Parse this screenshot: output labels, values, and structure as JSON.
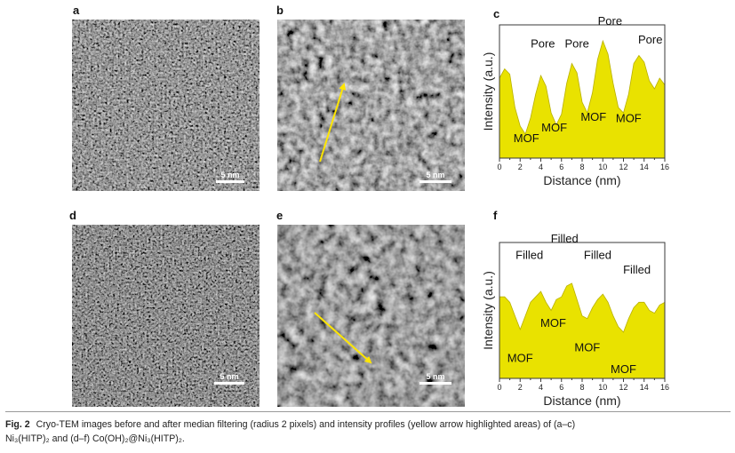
{
  "panels": {
    "a": {
      "label": "a",
      "scale": "5 nm"
    },
    "b": {
      "label": "b",
      "scale": "5 nm"
    },
    "c": {
      "label": "c"
    },
    "d": {
      "label": "d",
      "scale": "5 nm"
    },
    "e": {
      "label": "e",
      "scale": "5 nm"
    },
    "f": {
      "label": "f"
    }
  },
  "colors": {
    "fill": "#e9e200",
    "arrow": "#ffe600",
    "stroke": "#3a3a3a"
  },
  "chart_data": [
    {
      "type": "area",
      "panel": "c",
      "xlabel": "Distance (nm)",
      "ylabel": "Intensity (a.u.)",
      "xlim": [
        0,
        16
      ],
      "xticks": [
        "0",
        "2",
        "4",
        "6",
        "8",
        "10",
        "12",
        "14",
        "16"
      ],
      "x": [
        0,
        0.5,
        1.0,
        1.5,
        2.0,
        2.5,
        3.0,
        3.5,
        4.0,
        4.5,
        5.0,
        5.5,
        6.0,
        6.5,
        7.0,
        7.5,
        8.0,
        8.5,
        9.0,
        9.5,
        10.0,
        10.5,
        11.0,
        11.5,
        12.0,
        12.5,
        13.0,
        13.5,
        14.0,
        14.5,
        15.0,
        15.5,
        16.0
      ],
      "y": [
        0.6,
        0.67,
        0.63,
        0.38,
        0.24,
        0.18,
        0.3,
        0.48,
        0.62,
        0.54,
        0.34,
        0.25,
        0.33,
        0.56,
        0.71,
        0.64,
        0.42,
        0.34,
        0.49,
        0.74,
        0.88,
        0.78,
        0.56,
        0.38,
        0.34,
        0.48,
        0.71,
        0.77,
        0.72,
        0.58,
        0.52,
        0.6,
        0.55
      ],
      "annotations": [
        {
          "text": "Pore",
          "x": 4.2,
          "y": 0.83
        },
        {
          "text": "Pore",
          "x": 7.5,
          "y": 0.83
        },
        {
          "text": "Pore",
          "x": 10.7,
          "y": 1.0
        },
        {
          "text": "Pore",
          "x": 14.6,
          "y": 0.86
        },
        {
          "text": "MOF",
          "x": 2.6,
          "y": 0.12
        },
        {
          "text": "MOF",
          "x": 5.3,
          "y": 0.2
        },
        {
          "text": "MOF",
          "x": 9.1,
          "y": 0.28
        },
        {
          "text": "MOF",
          "x": 12.5,
          "y": 0.27
        }
      ]
    },
    {
      "type": "area",
      "panel": "f",
      "xlabel": "Distance (nm)",
      "ylabel": "Intensity (a.u.)",
      "xlim": [
        0,
        16
      ],
      "xticks": [
        "0",
        "2",
        "4",
        "6",
        "8",
        "10",
        "12",
        "14",
        "16"
      ],
      "x": [
        0,
        0.5,
        1.0,
        1.5,
        2.0,
        2.5,
        3.0,
        3.5,
        4.0,
        4.5,
        5.0,
        5.5,
        6.0,
        6.5,
        7.0,
        7.5,
        8.0,
        8.5,
        9.0,
        9.5,
        10.0,
        10.5,
        11.0,
        11.5,
        12.0,
        12.5,
        13.0,
        13.5,
        14.0,
        14.5,
        15.0,
        15.5,
        16.0
      ],
      "y": [
        0.6,
        0.6,
        0.56,
        0.46,
        0.36,
        0.46,
        0.56,
        0.6,
        0.64,
        0.56,
        0.5,
        0.58,
        0.6,
        0.68,
        0.7,
        0.58,
        0.46,
        0.44,
        0.52,
        0.58,
        0.62,
        0.56,
        0.46,
        0.38,
        0.34,
        0.44,
        0.52,
        0.56,
        0.56,
        0.5,
        0.48,
        0.54,
        0.56
      ],
      "annotations": [
        {
          "text": "Filled",
          "x": 2.9,
          "y": 0.88
        },
        {
          "text": "Filled",
          "x": 6.3,
          "y": 1.0
        },
        {
          "text": "Filled",
          "x": 9.5,
          "y": 0.88
        },
        {
          "text": "Filled",
          "x": 13.3,
          "y": 0.77
        },
        {
          "text": "MOF",
          "x": 2.0,
          "y": 0.12
        },
        {
          "text": "MOF",
          "x": 5.2,
          "y": 0.38
        },
        {
          "text": "MOF",
          "x": 8.5,
          "y": 0.2
        },
        {
          "text": "MOF",
          "x": 12.0,
          "y": 0.04
        }
      ]
    }
  ],
  "caption": {
    "fig": "Fig. 2",
    "line1": "Cryo-TEM images before and after median filtering (radius 2 pixels) and intensity profiles (yellow arrow highlighted areas) of (a–c)",
    "ni_part": "Ni₃(HITP)₂",
    "and_text": "and (d–f)",
    "co_part": "Co(OH)₂@Ni₃(HITP)₂."
  }
}
